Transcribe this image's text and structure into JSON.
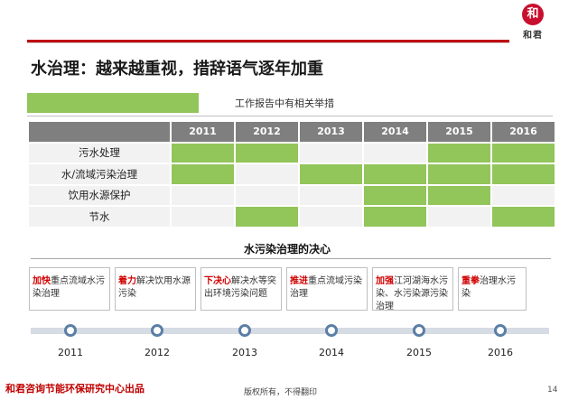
{
  "header": {
    "title": "水治理：越来越重视，措辞语气逐年加重",
    "logo_seal": "和",
    "logo_text": "和君",
    "accent": "#c00000"
  },
  "legend": {
    "label": "工作报告中有相关举措",
    "color": "#92c55a"
  },
  "table": {
    "years": [
      "2011",
      "2012",
      "2013",
      "2014",
      "2015",
      "2016"
    ],
    "rows": [
      {
        "label": "污水处理",
        "marks": [
          true,
          true,
          false,
          false,
          true,
          true
        ]
      },
      {
        "label": "水/流域污染治理",
        "marks": [
          true,
          false,
          true,
          true,
          true,
          true
        ]
      },
      {
        "label": "饮用水源保护",
        "marks": [
          false,
          false,
          false,
          true,
          true,
          false
        ]
      },
      {
        "label": "节水",
        "marks": [
          false,
          true,
          false,
          true,
          false,
          true
        ]
      }
    ]
  },
  "determination": {
    "title": "水污染治理的决心",
    "items": [
      {
        "highlight": "加快",
        "text": "重点流域水污染治理"
      },
      {
        "highlight": "着力",
        "text": "解决饮用水源污染"
      },
      {
        "highlight": "下决心",
        "text": "解决水等突出环境污染问题"
      },
      {
        "highlight": "推进",
        "text": "重点流域污染治理"
      },
      {
        "highlight": "加强",
        "text": "江河湖海水污染、水污染源污染治理"
      },
      {
        "highlight": "重拳",
        "text": "治理水污染"
      }
    ],
    "years": [
      "2011",
      "2012",
      "2013",
      "2014",
      "2015",
      "2016"
    ]
  },
  "footer": {
    "org": "和君咨询节能环保研究中心出品",
    "rights": "版权所有，不得翻印",
    "page": "14"
  }
}
